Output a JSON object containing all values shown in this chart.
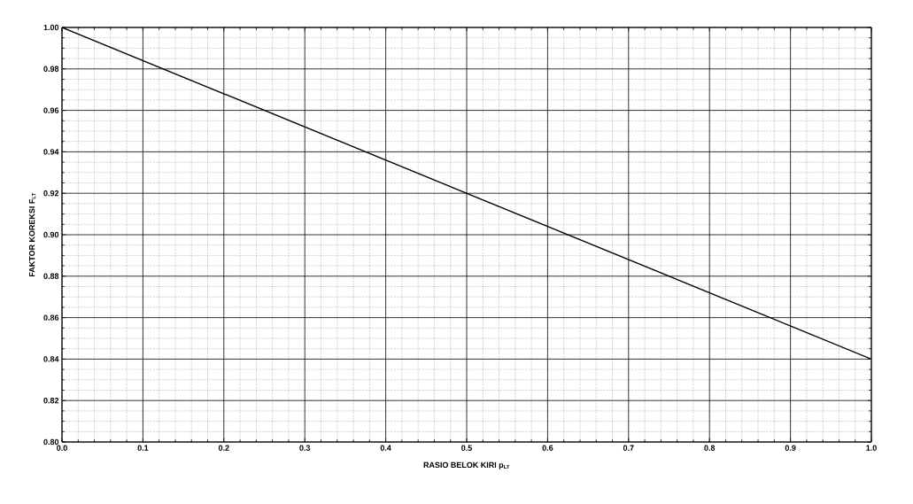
{
  "chart_data": {
    "type": "line",
    "xlabel": "RASIO BELOK KIRI p$_{LT}$",
    "ylabel": "FAKTOR KOREKSI F$_{LT}$",
    "x": [
      0,
      1
    ],
    "values": [
      1.0,
      0.84
    ],
    "color": "#000000",
    "xlim": [
      0,
      1
    ],
    "ylim": [
      0.8,
      1.0
    ],
    "xticks": [
      {
        "value": 0,
        "label": "0.0"
      },
      0.1,
      0.2,
      0.3,
      0.4,
      0.5,
      0.6,
      0.7,
      0.8,
      0.9,
      {
        "value": 1,
        "label": "1.0"
      }
    ],
    "yticks": [
      {
        "value": 0.8,
        "label": "0.80"
      },
      0.82,
      0.84,
      0.86,
      0.88,
      {
        "value": 0.9,
        "label": "0.90"
      },
      0.92,
      0.94,
      0.96,
      0.98,
      {
        "value": 1.0,
        "label": "1.00"
      }
    ],
    "grid": true
  }
}
